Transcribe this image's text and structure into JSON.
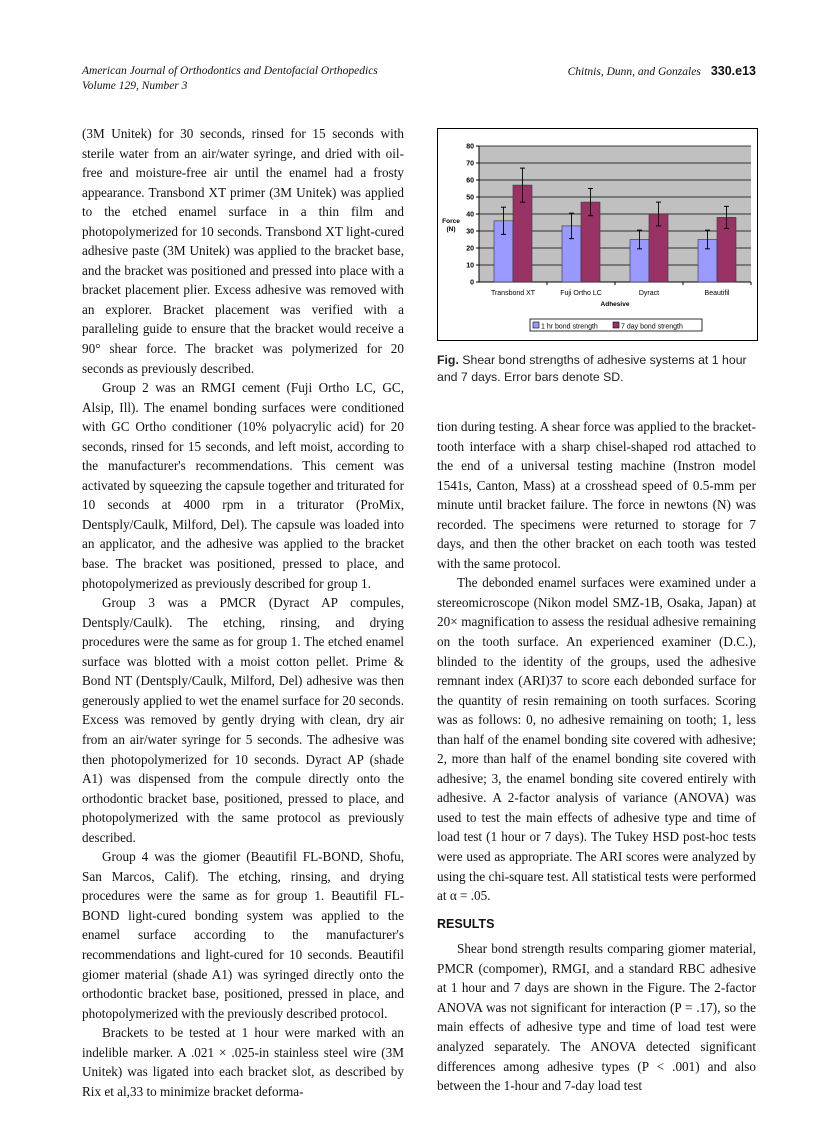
{
  "header": {
    "journal": "American Journal of Orthodontics and Dentofacial Orthopedics",
    "volume": "Volume 129, Number 3",
    "authors": "Chitnis, Dunn, and Gonzales",
    "page": "330.e13"
  },
  "left_paragraphs": [
    "(3M Unitek) for 30 seconds, rinsed for 15 seconds with sterile water from an air/water syringe, and dried with oil-free and moisture-free air until the enamel had a frosty appearance. Transbond XT primer (3M Unitek) was applied to the etched enamel surface in a thin film and photopolymerized for 10 seconds. Transbond XT light-cured adhesive paste (3M Unitek) was applied to the bracket base, and the bracket was positioned and pressed into place with a bracket placement plier. Excess adhesive was removed with an explorer. Bracket placement was verified with a paralleling guide to ensure that the bracket would receive a 90° shear force. The bracket was polymerized for 20 seconds as previously described.",
    "Group 2 was an RMGI cement (Fuji Ortho LC, GC, Alsip, Ill). The enamel bonding surfaces were conditioned with GC Ortho conditioner (10% polyacrylic acid) for 20 seconds, rinsed for 15 seconds, and left moist, according to the manufacturer's recommendations. This cement was activated by squeezing the capsule together and triturated for 10 seconds at 4000 rpm in a triturator (ProMix, Dentsply/Caulk, Milford, Del). The capsule was loaded into an applicator, and the adhesive was applied to the bracket base. The bracket was positioned, pressed to place, and photopolymerized as previously described for group 1.",
    "Group 3 was a PMCR (Dyract AP compules, Dentsply/Caulk). The etching, rinsing, and drying procedures were the same as for group 1. The etched enamel surface was blotted with a moist cotton pellet. Prime & Bond NT (Dentsply/Caulk, Milford, Del) adhesive was then generously applied to wet the enamel surface for 20 seconds. Excess was removed by gently drying with clean, dry air from an air/water syringe for 5 seconds. The adhesive was then photopolymerized for 10 seconds. Dyract AP (shade A1) was dispensed from the compule directly onto the orthodontic bracket base, positioned, pressed to place, and photopolymerized with the same protocol as previously described.",
    "Group 4 was the giomer (Beautifil FL-BOND, Shofu, San Marcos, Calif). The etching, rinsing, and drying procedures were the same as for group 1. Beautifil FL-BOND light-cured bonding system was applied to the enamel surface according to the manufacturer's recommendations and light-cured for 10 seconds. Beautifil giomer material (shade A1) was syringed directly onto the orthodontic bracket base, positioned, pressed in place, and photopolymerized with the previously described protocol.",
    "Brackets to be tested at 1 hour were marked with an indelible marker. A .021 × .025-in stainless steel wire (3M Unitek) was ligated into each bracket slot, as described by Rix et al,33 to minimize bracket deforma-"
  ],
  "right_paragraphs": [
    "tion during testing. A shear force was applied to the bracket-tooth interface with a sharp chisel-shaped rod attached to the end of a universal testing machine (Instron model 1541s, Canton, Mass) at a crosshead speed of 0.5-mm per minute until bracket failure. The force in newtons (N) was recorded. The specimens were returned to storage for 7 days, and then the other bracket on each tooth was tested with the same protocol.",
    "The debonded enamel surfaces were examined under a stereomicroscope (Nikon model SMZ-1B, Osaka, Japan) at 20× magnification to assess the residual adhesive remaining on the tooth surface. An experienced examiner (D.C.), blinded to the identity of the groups, used the adhesive remnant index (ARI)37 to score each debonded surface for the quantity of resin remaining on tooth surfaces. Scoring was as follows: 0, no adhesive remaining on tooth; 1, less than half of the enamel bonding site covered with adhesive; 2, more than half of the enamel bonding site covered with adhesive; 3, the enamel bonding site covered entirely with adhesive. A 2-factor analysis of variance (ANOVA) was used to test the main effects of adhesive type and time of load test (1 hour or 7 days). The Tukey HSD post-hoc tests were used as appropriate. The ARI scores were analyzed by using the chi-square test. All statistical tests were performed at α = .05."
  ],
  "results_heading": "RESULTS",
  "results_paragraph": "Shear bond strength results comparing giomer material, PMCR (compomer), RMGI, and a standard RBC adhesive at 1 hour and 7 days are shown in the Figure. The 2-factor ANOVA was not significant for interaction (P = .17), so the main effects of adhesive type and time of load test were analyzed separately. The ANOVA detected significant differences among adhesive types (P < .001) and also between the 1-hour and 7-day load test",
  "caption": {
    "label": "Fig.",
    "text": " Shear bond strengths of adhesive systems at 1 hour and 7 days. Error bars denote SD."
  },
  "chart_data": {
    "type": "bar",
    "categories": [
      "Transbond XT",
      "Fuji Ortho LC",
      "Dyract",
      "Beautifil"
    ],
    "series": [
      {
        "name": "1 hr bond strength",
        "values": [
          36,
          33,
          25,
          25
        ],
        "error": [
          8,
          7.5,
          5.5,
          5.5
        ],
        "color": "#9999ff"
      },
      {
        "name": "7 day bond strength",
        "values": [
          57,
          47,
          40,
          38
        ],
        "error": [
          10,
          8,
          7,
          6.5
        ],
        "color": "#993366"
      }
    ],
    "xlabel": "Adhesive",
    "ylabel": "Force (N)",
    "ylim": [
      0,
      80
    ],
    "yticks": [
      "0",
      "10",
      "20",
      "30",
      "40",
      "50",
      "60",
      "70",
      "80"
    ],
    "grid": true,
    "legend": "bottom",
    "plot_bg": "#c0c0c0"
  }
}
